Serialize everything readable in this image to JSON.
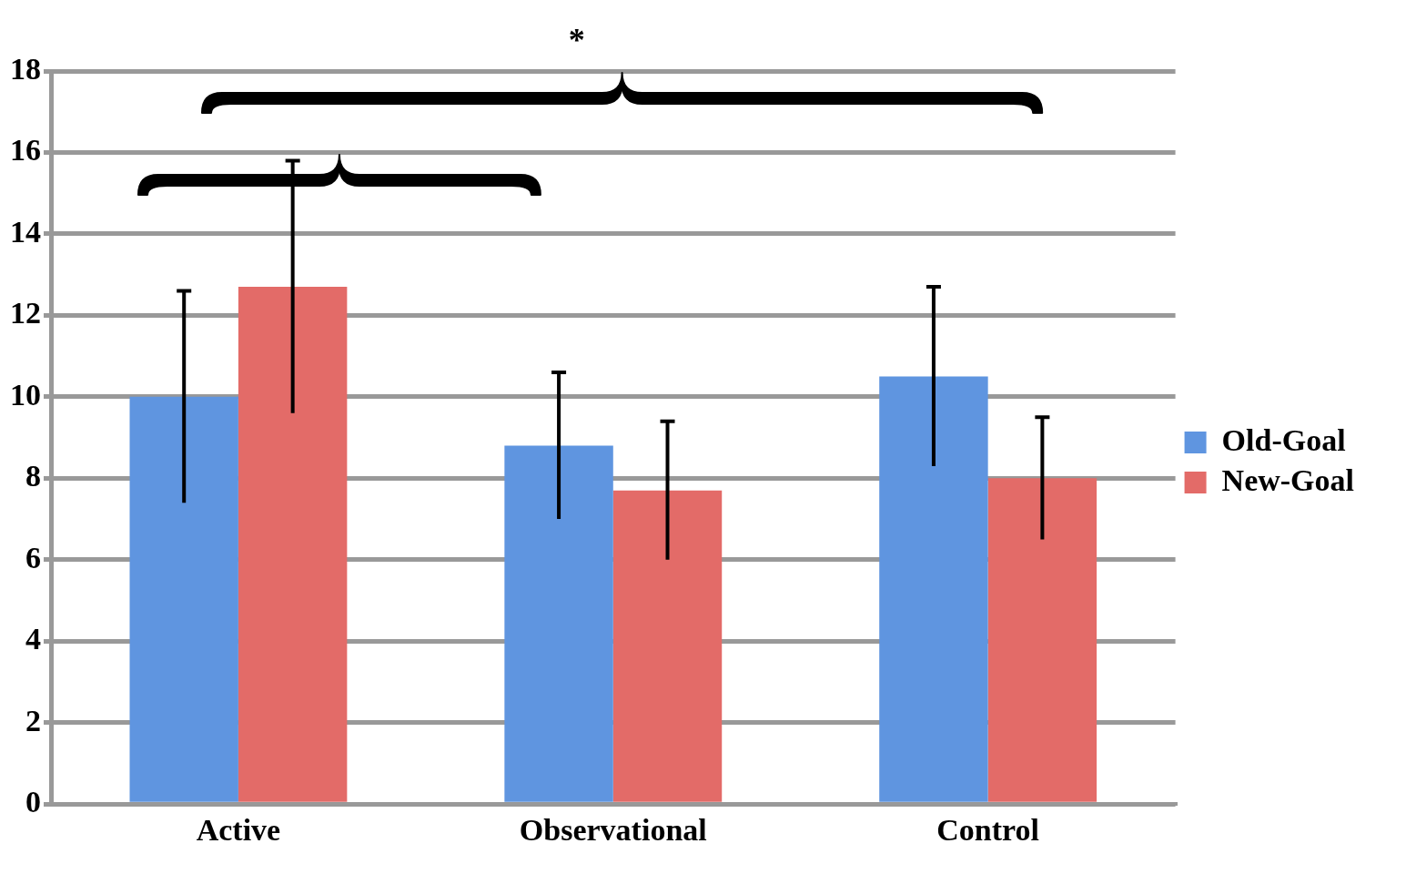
{
  "chart_data": {
    "type": "bar",
    "categories": [
      "Active",
      "Observational",
      "Control"
    ],
    "series": [
      {
        "name": "Old-Goal",
        "color": "#5f95e0",
        "values": [
          10,
          8.8,
          10.5
        ],
        "errors": [
          2.6,
          1.8,
          2.2
        ]
      },
      {
        "name": "New-Goal",
        "color": "#e36b68",
        "values": [
          12.7,
          7.7,
          8
        ],
        "errors": [
          3.1,
          1.7,
          1.5
        ]
      }
    ],
    "ylim": [
      0,
      18
    ],
    "yticks": [
      0,
      2,
      4,
      6,
      8,
      10,
      12,
      14,
      16,
      18
    ],
    "grid": "y",
    "legend": "right",
    "annotations": [
      "*"
    ]
  }
}
